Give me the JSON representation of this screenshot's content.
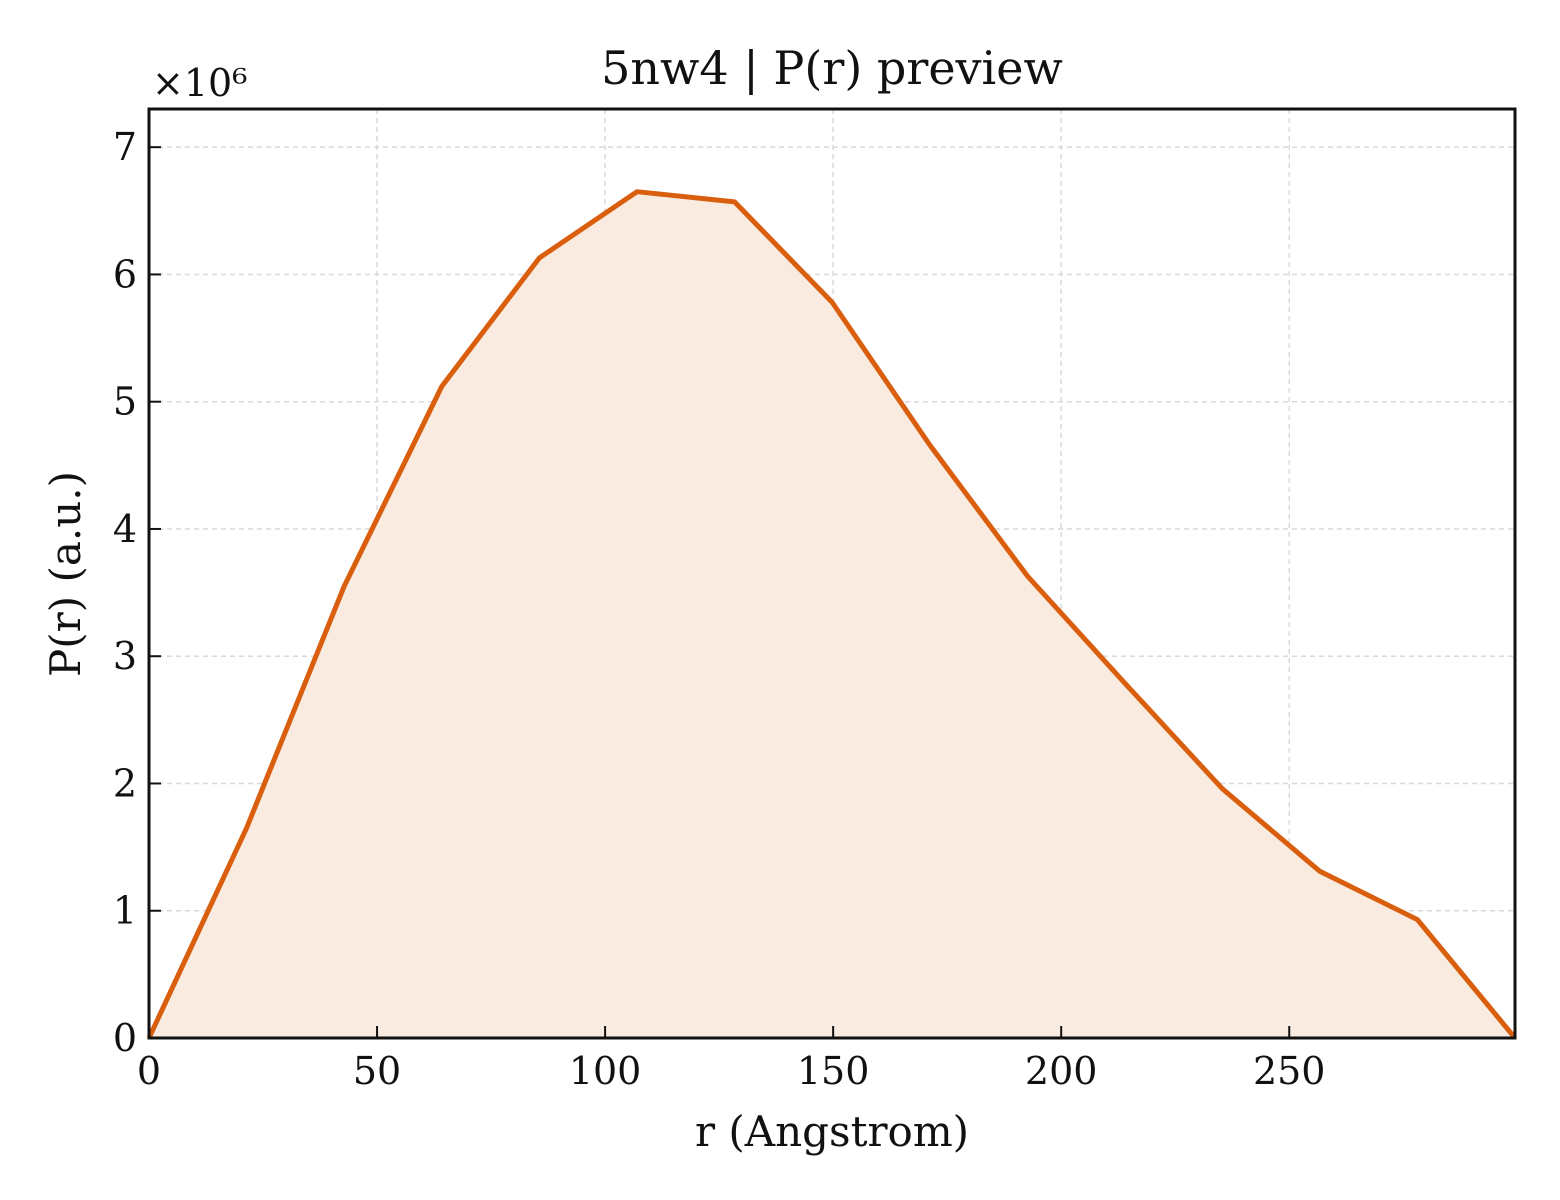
{
  "chart_data": {
    "type": "area",
    "title": "5nw4 | P(r) preview",
    "xlabel": "r (Angstrom)",
    "ylabel": "P(r) (a.u.)",
    "y_scale_label": "×10⁶",
    "y_multiplier": 1000000,
    "xlim": [
      0,
      299.5
    ],
    "ylim": [
      0,
      7.3
    ],
    "xticks": [
      0,
      50,
      100,
      150,
      200,
      250
    ],
    "yticks": [
      0,
      1,
      2,
      3,
      4,
      5,
      6,
      7
    ],
    "grid": true,
    "line_color": "#d95f0e",
    "fill_color": "#f9ebe0",
    "series": [
      {
        "x": [
          0,
          21.4,
          42.8,
          64.2,
          85.6,
          107.0,
          128.4,
          149.8,
          171.2,
          192.6,
          213.9,
          235.3,
          256.7,
          278.1,
          299.5
        ],
        "y": [
          0.0,
          1.65,
          3.55,
          5.12,
          6.13,
          6.65,
          6.57,
          5.78,
          4.66,
          3.63,
          2.79,
          1.96,
          1.31,
          0.93,
          0.0
        ]
      }
    ]
  }
}
